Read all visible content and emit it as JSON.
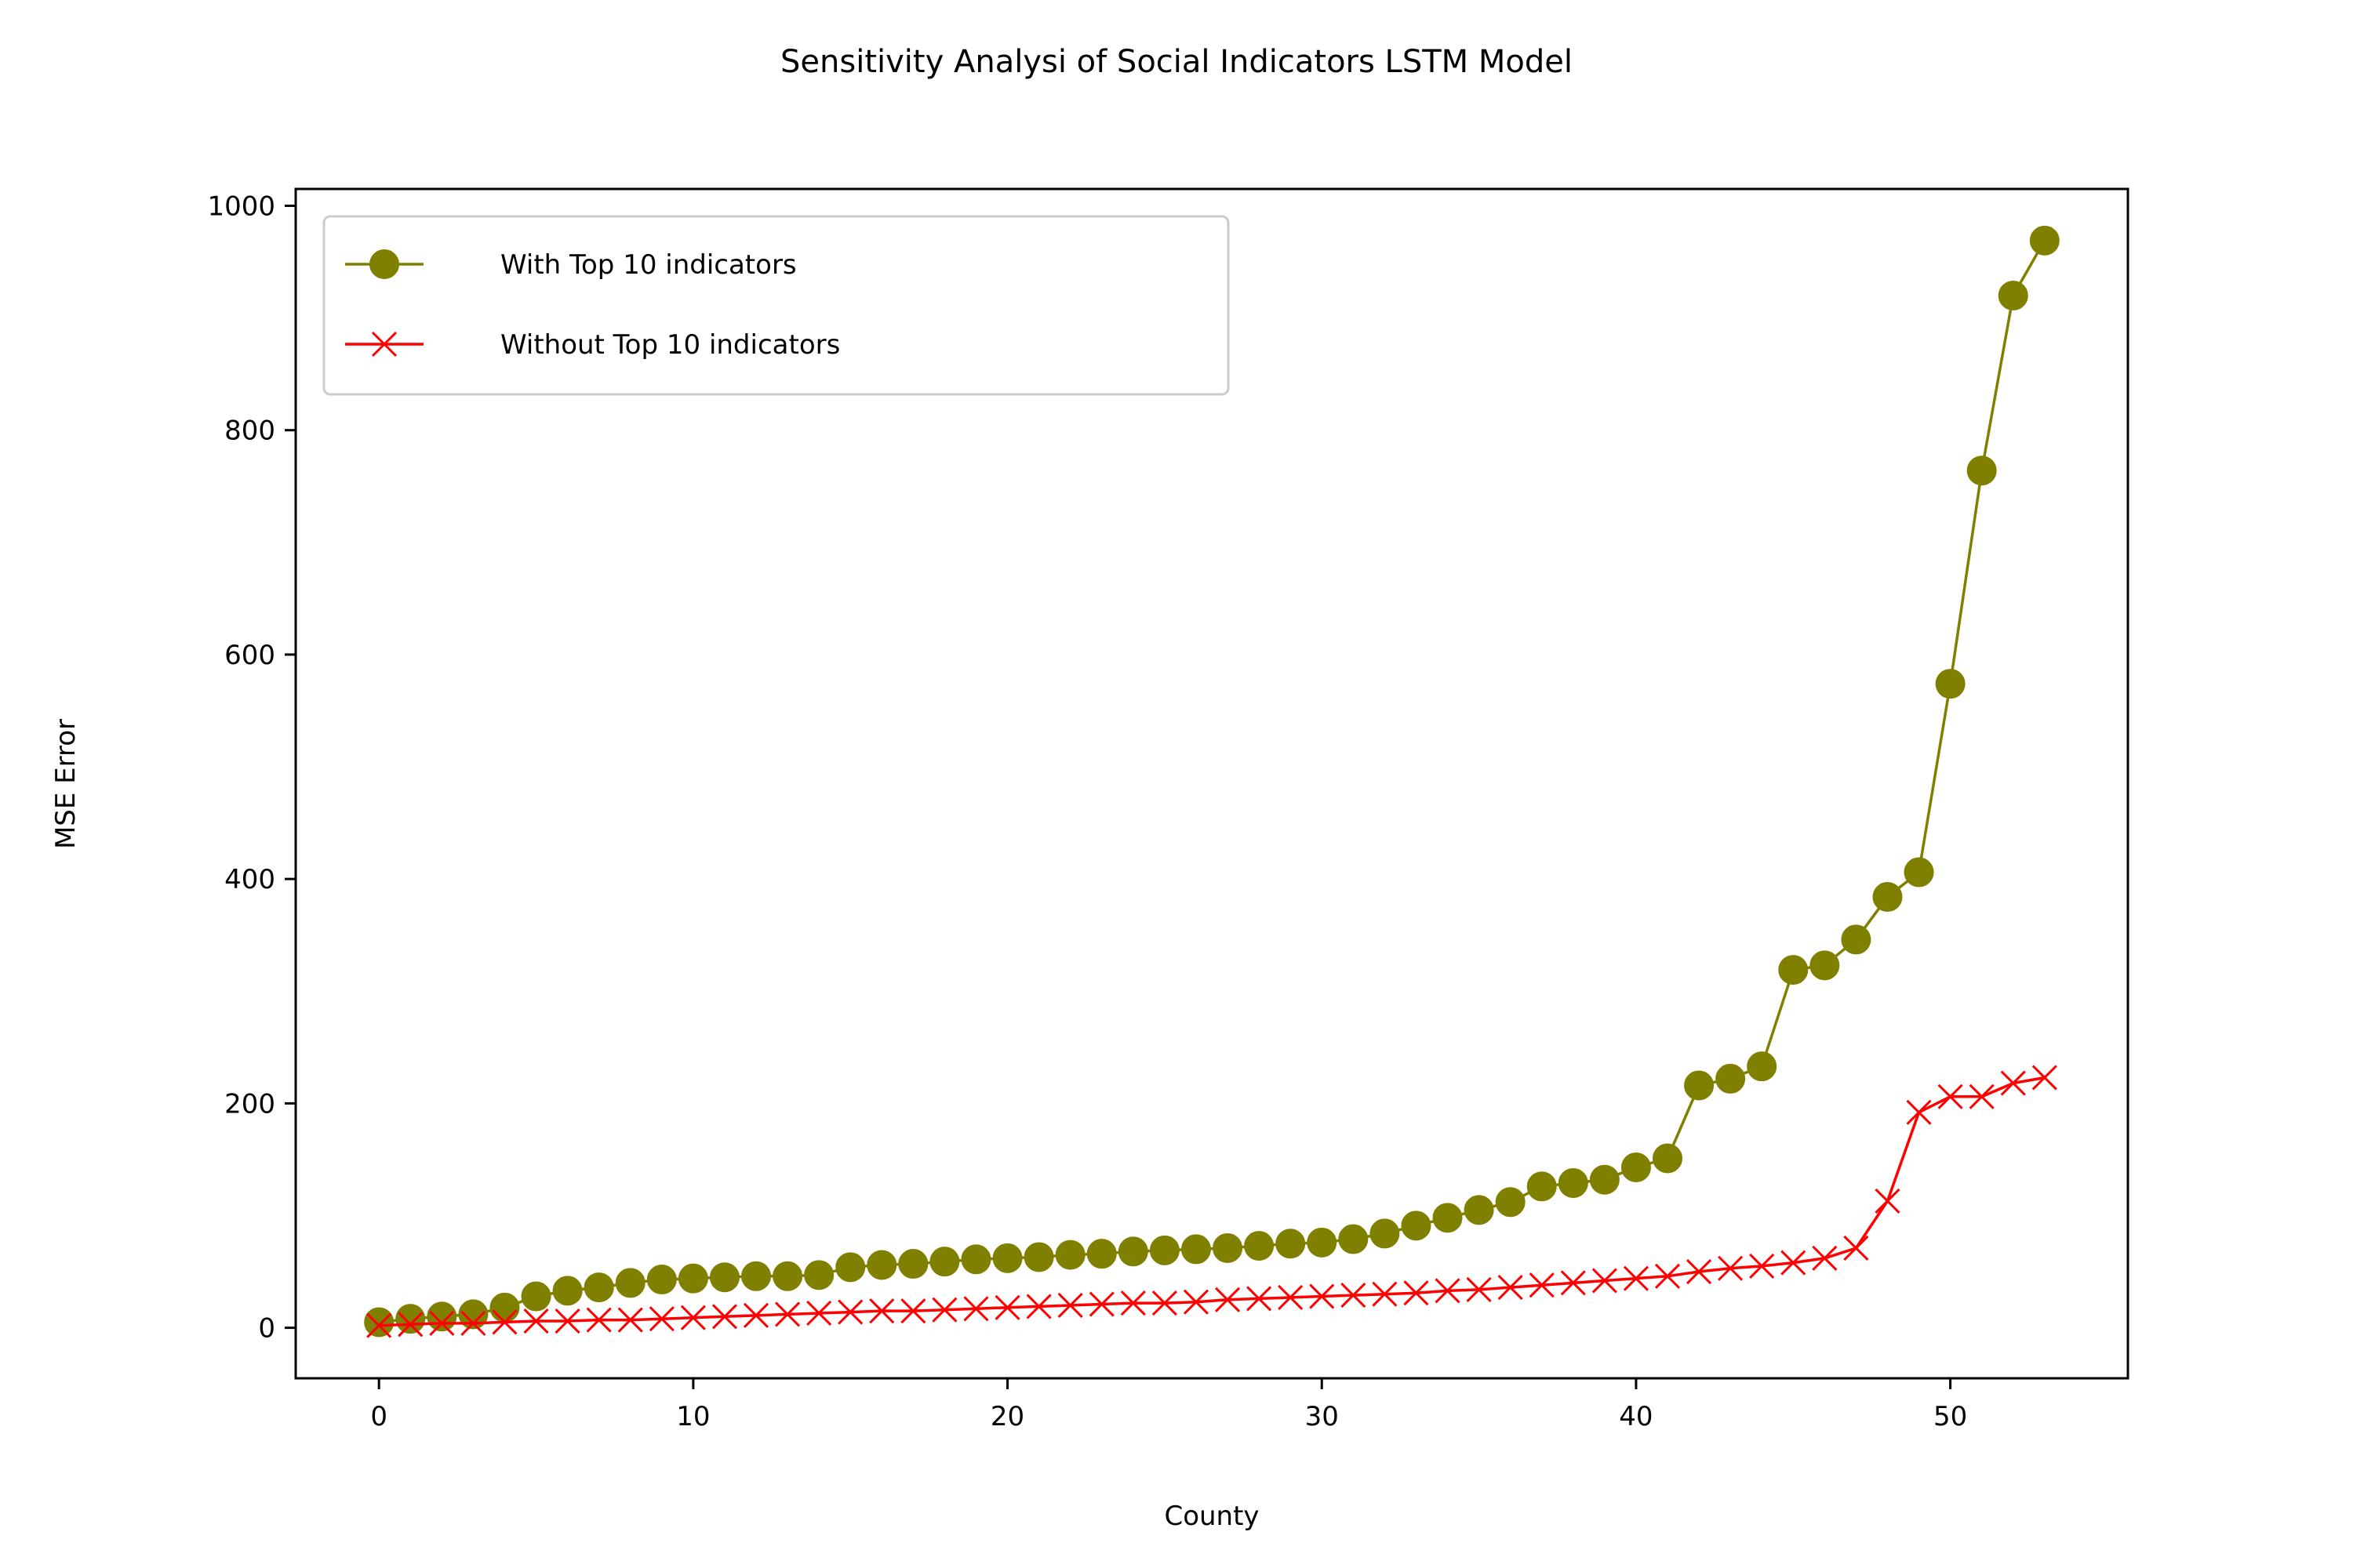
{
  "chart_data": {
    "type": "line",
    "title": "Sensitivity Analysi of Social Indicators LSTM Model",
    "xlabel": "County",
    "ylabel": "MSE Error",
    "xlim": [
      -2.65,
      55.65
    ],
    "ylim": [
      -45,
      1015
    ],
    "xticks": [
      0,
      10,
      20,
      30,
      40,
      50
    ],
    "yticks": [
      0,
      200,
      400,
      600,
      800,
      1000
    ],
    "grid": false,
    "legend_position": "upper-left",
    "colors": {
      "with": "#808000",
      "without": "#ff0000"
    },
    "series": [
      {
        "name": "With Top 10 indicators",
        "marker": "circle",
        "color": "#808000",
        "x": [
          0,
          1,
          2,
          3,
          4,
          5,
          6,
          7,
          8,
          9,
          10,
          11,
          12,
          13,
          14,
          15,
          16,
          17,
          18,
          19,
          20,
          21,
          22,
          23,
          24,
          25,
          26,
          27,
          28,
          29,
          30,
          31,
          32,
          33,
          34,
          35,
          36,
          37,
          38,
          39,
          40,
          41,
          42,
          43,
          44,
          45,
          46,
          47,
          48,
          49,
          50,
          51,
          52,
          53
        ],
        "values": [
          5,
          8,
          10,
          12,
          18,
          28,
          33,
          36,
          40,
          43,
          44,
          45,
          46,
          46,
          47,
          54,
          56,
          57,
          59,
          61,
          62,
          63,
          65,
          66,
          68,
          69,
          70,
          71,
          73,
          75,
          76,
          79,
          84,
          91,
          98,
          105,
          112,
          126,
          129,
          132,
          143,
          151,
          216,
          222,
          233,
          319,
          323,
          346,
          384,
          406,
          574,
          764,
          920,
          969
        ]
      },
      {
        "name": "Without Top 10 indicators",
        "marker": "x",
        "color": "#ff0000",
        "x": [
          0,
          1,
          2,
          3,
          4,
          5,
          6,
          7,
          8,
          9,
          10,
          11,
          12,
          13,
          14,
          15,
          16,
          17,
          18,
          19,
          20,
          21,
          22,
          23,
          24,
          25,
          26,
          27,
          28,
          29,
          30,
          31,
          32,
          33,
          34,
          35,
          36,
          37,
          38,
          39,
          40,
          41,
          42,
          43,
          44,
          45,
          46,
          47,
          48,
          49,
          50,
          51,
          52,
          53
        ],
        "values": [
          2,
          3,
          4,
          4,
          5,
          6,
          6,
          7,
          7,
          8,
          9,
          10,
          11,
          12,
          13,
          14,
          15,
          15,
          16,
          17,
          18,
          19,
          20,
          21,
          22,
          22,
          23,
          25,
          26,
          27,
          28,
          29,
          30,
          31,
          33,
          34,
          36,
          38,
          40,
          42,
          44,
          46,
          50,
          53,
          55,
          58,
          62,
          71,
          113,
          192,
          206,
          206,
          218,
          223
        ]
      }
    ]
  }
}
